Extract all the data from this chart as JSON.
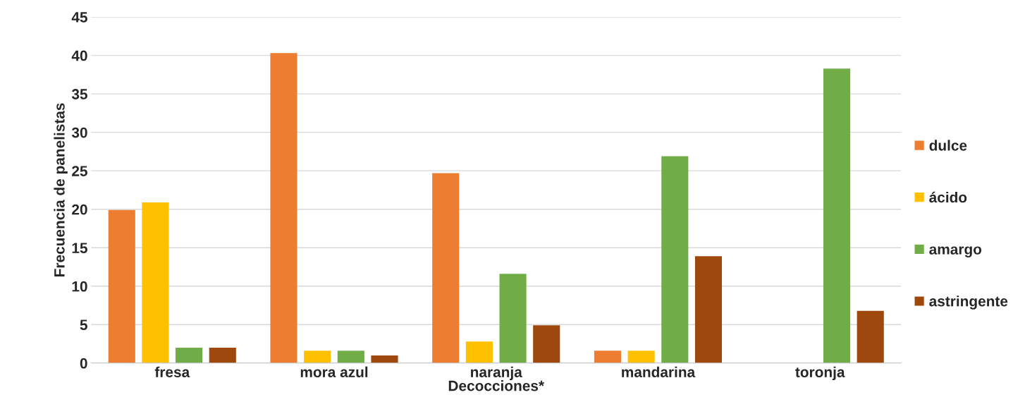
{
  "chart_data": {
    "type": "bar",
    "xlabel": "Decocciones*",
    "ylabel": "Frecuencia de panelistas",
    "categories": [
      "fresa",
      "mora azul",
      "naranja",
      "mandarina",
      "toronja"
    ],
    "series": [
      {
        "name": "dulce",
        "color": "#ed7d31",
        "values": [
          19.9,
          40.3,
          24.7,
          1.6,
          0
        ]
      },
      {
        "name": "ácido",
        "color": "#ffc000",
        "values": [
          20.9,
          1.6,
          2.8,
          1.6,
          0
        ]
      },
      {
        "name": "amargo",
        "color": "#70ad47",
        "values": [
          2.0,
          1.6,
          11.6,
          26.9,
          38.3
        ]
      },
      {
        "name": "astringente",
        "color": "#9e480e",
        "values": [
          2.0,
          1.0,
          4.9,
          13.9,
          6.8
        ]
      }
    ],
    "ylim": [
      0,
      45
    ],
    "yticks": [
      0,
      5,
      10,
      15,
      20,
      25,
      30,
      35,
      40,
      45
    ],
    "grid": "y",
    "legend": "right"
  }
}
